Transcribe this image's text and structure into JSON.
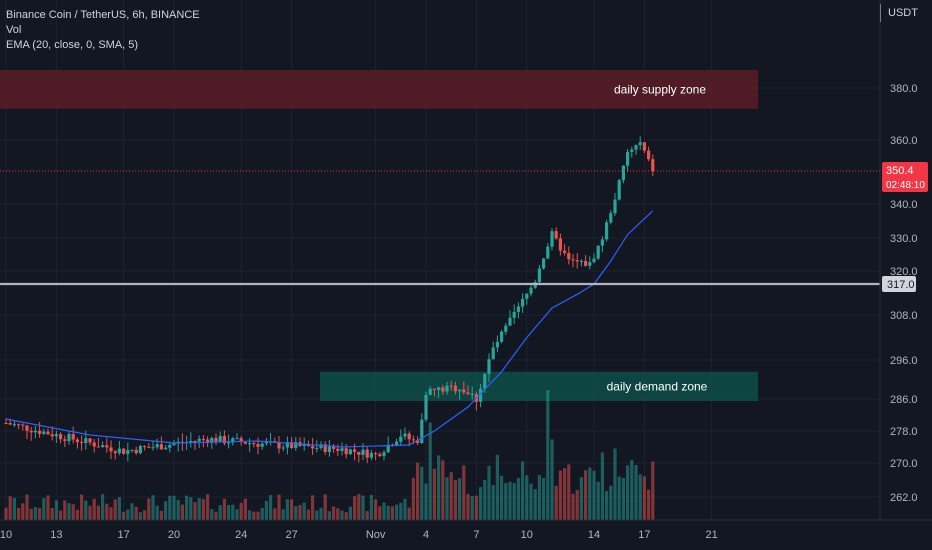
{
  "header": {
    "symbol_line": "Binance Coin / TetherUS, 6h, BINANCE",
    "volume_label": "Vol",
    "ema_label": "EMA (20, close, 0, SMA, 5)",
    "currency": "USDT"
  },
  "colors": {
    "background": "#131722",
    "up": "#26a69a",
    "down": "#ef5350",
    "ema": "#2962ff",
    "support_line": "#b2b5be",
    "supply_zone": "#5b1d26",
    "demand_zone": "#0e4a46",
    "price_tag": "#f23645"
  },
  "zones": {
    "supply": {
      "label": "daily supply zone",
      "high": 382.5,
      "low": 372.0
    },
    "demand": {
      "label": "daily demand zone",
      "high": 293.0,
      "low": 285.5
    }
  },
  "support_level": {
    "value": 317.0,
    "label": "317.0"
  },
  "current_price": {
    "value": 350.4,
    "label": "350.4",
    "countdown": "02:48:10"
  },
  "chart_data": {
    "type": "candlestick",
    "title": "Binance Coin / TetherUS, 6h, BINANCE",
    "y_ticks": [
      "380.0",
      "360.0",
      "340.0",
      "330.0",
      "320.0",
      "308.0",
      "296.0",
      "286.0",
      "278.0",
      "270.0",
      "262.0"
    ],
    "x_ticks": [
      "10",
      "13",
      "17",
      "20",
      "24",
      "27",
      "Nov",
      "4",
      "7",
      "10",
      "14",
      "17",
      "21"
    ],
    "close_anchors": [
      {
        "d": 0,
        "c": 280
      },
      {
        "d": 7,
        "c": 273
      },
      {
        "d": 12,
        "c": 276
      },
      {
        "d": 16,
        "c": 274.5
      },
      {
        "d": 20,
        "c": 273.5
      },
      {
        "d": 22,
        "c": 272
      },
      {
        "d": 23.5,
        "c": 277
      },
      {
        "d": 24.5,
        "c": 275
      },
      {
        "d": 25,
        "c": 288
      },
      {
        "d": 27,
        "c": 289
      },
      {
        "d": 28,
        "c": 286
      },
      {
        "d": 29,
        "c": 299
      },
      {
        "d": 30.5,
        "c": 310
      },
      {
        "d": 31.5,
        "c": 318
      },
      {
        "d": 32.5,
        "c": 331
      },
      {
        "d": 33.5,
        "c": 323
      },
      {
        "d": 34.75,
        "c": 322
      },
      {
        "d": 35.5,
        "c": 330
      },
      {
        "d": 36.25,
        "c": 342
      },
      {
        "d": 37,
        "c": 356
      },
      {
        "d": 37.75,
        "c": 359
      },
      {
        "d": 38.5,
        "c": 350.4
      }
    ],
    "ema_points": [
      {
        "d": 0,
        "v": 281
      },
      {
        "d": 5,
        "v": 277
      },
      {
        "d": 10,
        "v": 275
      },
      {
        "d": 15,
        "v": 275.5
      },
      {
        "d": 20,
        "v": 274
      },
      {
        "d": 24,
        "v": 274.5
      },
      {
        "d": 25.5,
        "v": 278
      },
      {
        "d": 27.5,
        "v": 284
      },
      {
        "d": 29.5,
        "v": 293
      },
      {
        "d": 31,
        "v": 302
      },
      {
        "d": 32.5,
        "v": 310
      },
      {
        "d": 34,
        "v": 314
      },
      {
        "d": 35,
        "v": 317
      },
      {
        "d": 36,
        "v": 323
      },
      {
        "d": 37,
        "v": 331
      },
      {
        "d": 38.5,
        "v": 338
      }
    ],
    "volume_spikes": [
      {
        "d": 25.25,
        "h": 0.75
      },
      {
        "d": 32.25,
        "h": 1.0
      },
      {
        "d": 32.5,
        "h": 0.62
      },
      {
        "d": 30.75,
        "h": 0.45
      },
      {
        "d": 35.5,
        "h": 0.52
      },
      {
        "d": 36.25,
        "h": 0.55
      },
      {
        "d": 37,
        "h": 0.42
      }
    ]
  }
}
